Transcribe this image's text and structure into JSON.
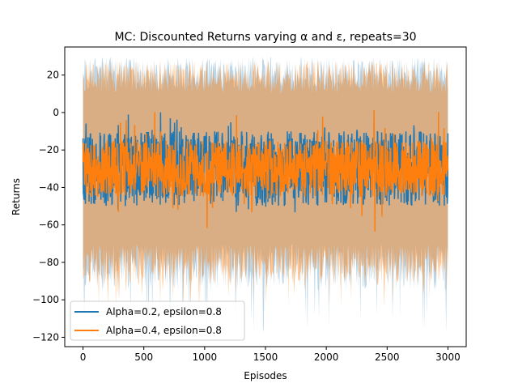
{
  "chart_data": {
    "type": "line",
    "title": "MC: Discounted Returns varying α and ε, repeats=30",
    "xlabel": "Episodes",
    "ylabel": "Returns",
    "xlim": [
      -150,
      3150
    ],
    "ylim": [
      -125,
      35
    ],
    "x_ticks": [
      0,
      500,
      1000,
      1500,
      2000,
      2500,
      3000
    ],
    "y_ticks": [
      -120,
      -100,
      -80,
      -60,
      -40,
      -20,
      0,
      20
    ],
    "grid": false,
    "legend_position": "lower-left",
    "x_range": [
      0,
      3000
    ],
    "series": [
      {
        "name": "Alpha=0.2, epsilon=0.8",
        "color": "#1f77b4",
        "mean_center": -30,
        "mean_spread_typical": [
          -50,
          -10
        ],
        "mean_spread_extreme": [
          -54,
          2
        ],
        "band_upper_typical": [
          12,
          30
        ],
        "band_lower_typical": [
          -70,
          -95
        ],
        "band_lower_extreme": -118,
        "band_alpha": 0.3
      },
      {
        "name": "Alpha=0.4, epsilon=0.8",
        "color": "#ff7f0e",
        "mean_center": -30,
        "mean_spread_typical": [
          -45,
          -15
        ],
        "mean_spread_extreme": [
          -64,
          2
        ],
        "band_upper_typical": [
          10,
          28
        ],
        "band_lower_typical": [
          -70,
          -92
        ],
        "band_lower_extreme": -105,
        "band_alpha": 0.45
      }
    ]
  }
}
